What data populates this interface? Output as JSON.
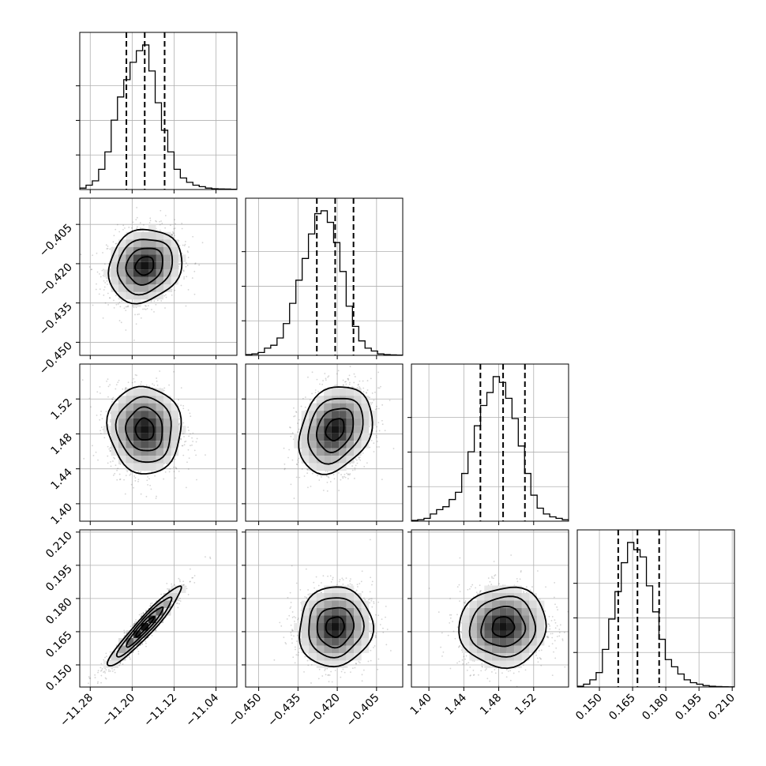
{
  "chart_data": {
    "type": "corner",
    "parameters": [
      {
        "range": [
          -11.3,
          -11.0
        ],
        "ticks": [
          -11.28,
          -11.2,
          -11.12,
          -11.04
        ],
        "tick_labels": [
          "−11.28",
          "−11.20",
          "−11.12",
          "−11.04"
        ],
        "quantiles": [
          -11.211,
          -11.176,
          -11.138
        ],
        "median": -11.176,
        "sigma": 0.035,
        "hist": [
          0.01,
          0.03,
          0.06,
          0.14,
          0.26,
          0.48,
          0.64,
          0.76,
          0.88,
          0.96,
          1.0,
          0.82,
          0.6,
          0.41,
          0.26,
          0.14,
          0.08,
          0.05,
          0.03,
          0.02,
          0.01,
          0.005,
          0.004,
          0.003,
          0.002
        ]
      },
      {
        "range": [
          -0.455,
          -0.395
        ],
        "ticks": [
          -0.45,
          -0.435,
          -0.42,
          -0.405
        ],
        "tick_labels": [
          "−0.450",
          "−0.435",
          "−0.420",
          "−0.405"
        ],
        "quantiles": [
          -0.4278,
          -0.4208,
          -0.4138
        ],
        "median": -0.4208,
        "sigma": 0.007,
        "hist": [
          0.005,
          0.01,
          0.02,
          0.05,
          0.07,
          0.12,
          0.22,
          0.36,
          0.52,
          0.67,
          0.84,
          0.98,
          1.0,
          0.92,
          0.78,
          0.58,
          0.34,
          0.2,
          0.1,
          0.05,
          0.03,
          0.01,
          0.005,
          0.003,
          0.002
        ]
      },
      {
        "range": [
          1.38,
          1.56
        ],
        "ticks": [
          1.4,
          1.44,
          1.48,
          1.52
        ],
        "tick_labels": [
          "1.40",
          "1.44",
          "1.48",
          "1.52"
        ],
        "quantiles": [
          1.459,
          1.485,
          1.51
        ],
        "median": 1.485,
        "sigma": 0.025,
        "hist": [
          0.005,
          0.01,
          0.02,
          0.05,
          0.08,
          0.1,
          0.15,
          0.2,
          0.33,
          0.48,
          0.66,
          0.8,
          0.89,
          1.0,
          0.96,
          0.85,
          0.71,
          0.52,
          0.33,
          0.18,
          0.09,
          0.05,
          0.03,
          0.02,
          0.01
        ]
      },
      {
        "range": [
          0.14,
          0.211
        ],
        "ticks": [
          0.15,
          0.165,
          0.18,
          0.195,
          0.21
        ],
        "tick_labels": [
          "0.150",
          "0.165",
          "0.180",
          "0.195",
          "0.210"
        ],
        "quantiles": [
          0.1585,
          0.1672,
          0.177
        ],
        "median": 0.1672,
        "sigma": 0.009,
        "hist": [
          0.005,
          0.02,
          0.05,
          0.1,
          0.26,
          0.47,
          0.66,
          0.86,
          1.0,
          0.95,
          0.9,
          0.7,
          0.52,
          0.33,
          0.19,
          0.14,
          0.09,
          0.05,
          0.03,
          0.02,
          0.01,
          0.005,
          0.003,
          0.002,
          0.001
        ]
      }
    ],
    "correlations": [
      [
        1.0,
        0.15,
        -0.05,
        0.95
      ],
      [
        0.15,
        1.0,
        0.25,
        0.05
      ],
      [
        -0.05,
        0.25,
        1.0,
        0.05
      ],
      [
        0.95,
        0.05,
        0.05,
        1.0
      ]
    ],
    "contour_levels_sigma": [
      0.5,
      1.0,
      1.5,
      2.0
    ],
    "grid": true
  }
}
